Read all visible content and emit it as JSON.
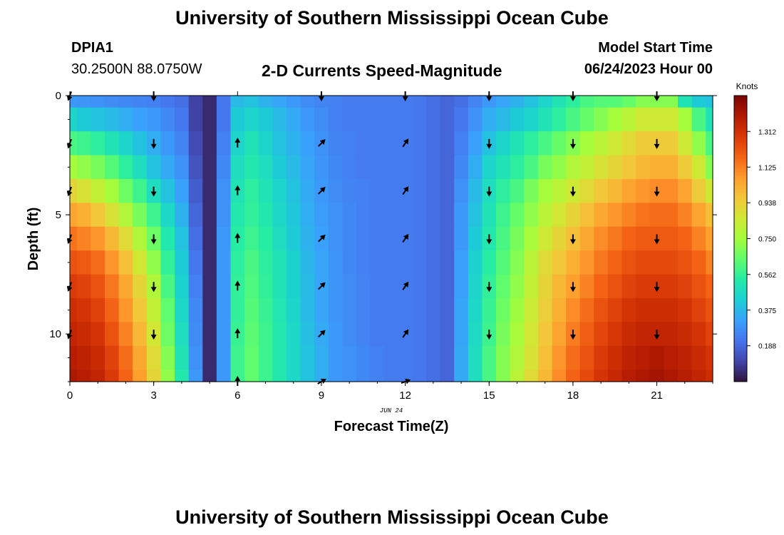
{
  "header": {
    "title": "University of Southern Mississippi Ocean Cube",
    "station_id": "DPIA1",
    "station_coords": "30.2500N  88.0750W",
    "subtitle": "2-D Currents Speed-Magnitude",
    "model_label": "Model Start Time",
    "model_time": "06/24/2023 Hour 00"
  },
  "footer": {
    "title": "University of Southern Mississippi Ocean Cube"
  },
  "colors": {
    "palette": [
      "#30123b",
      "#4145ab",
      "#4675ed",
      "#39a2fc",
      "#1bcfd4",
      "#24eca6",
      "#61fc6c",
      "#a4fc3b",
      "#d1e834",
      "#f3c63a",
      "#fe9b2d",
      "#f36315",
      "#d93806",
      "#b11901",
      "#7a0403"
    ]
  },
  "chart_data": {
    "type": "heatmap",
    "xlabel": "Forecast Time(Z)",
    "ylabel": "Depth (ft)",
    "date_label": "JUN 24",
    "colorbar_title": "Knots",
    "colorbar_ticks": [
      "1.312",
      "1.125",
      "0.938",
      "0.750",
      "0.562",
      "0.375",
      "0.188"
    ],
    "colorbar_tick_values": [
      1.312,
      1.125,
      0.938,
      0.75,
      0.562,
      0.375,
      0.188
    ],
    "value_range": [
      0,
      1.5
    ],
    "x_ticks": [
      "0",
      "3",
      "6",
      "9",
      "12",
      "15",
      "18",
      "21"
    ],
    "x_tick_values": [
      0,
      3,
      6,
      9,
      12,
      15,
      18,
      21
    ],
    "y_ticks": [
      "0",
      "5",
      "10"
    ],
    "y_tick_values": [
      0,
      5,
      10
    ],
    "xlim": [
      0,
      23
    ],
    "ylim": [
      12,
      0
    ],
    "hours": [
      0,
      0.5,
      1,
      1.5,
      2,
      2.5,
      3,
      3.5,
      4,
      4.5,
      5,
      5.5,
      6,
      6.5,
      7,
      7.5,
      8,
      8.5,
      9,
      9.5,
      10,
      10.5,
      11,
      11.5,
      12,
      12.5,
      13,
      13.5,
      14,
      14.5,
      15,
      15.5,
      16,
      16.5,
      17,
      17.5,
      18,
      18.5,
      19,
      19.5,
      20,
      20.5,
      21,
      21.5,
      22,
      22.5,
      23
    ],
    "depths": [
      0,
      1,
      2,
      3,
      4,
      5,
      6,
      7,
      8,
      9,
      10,
      11,
      12
    ],
    "speed_grid": [
      [
        0.3,
        0.29,
        0.28,
        0.27,
        0.26,
        0.25,
        0.24,
        0.22,
        0.2,
        0.1,
        0.05,
        0.22,
        0.38,
        0.4,
        0.36,
        0.33,
        0.3,
        0.27,
        0.25,
        0.24,
        0.23,
        0.23,
        0.23,
        0.23,
        0.23,
        0.22,
        0.2,
        0.18,
        0.2,
        0.25,
        0.3,
        0.33,
        0.36,
        0.4,
        0.45,
        0.5,
        0.55,
        0.6,
        0.62,
        0.62,
        0.65,
        0.7,
        0.7,
        0.7,
        0.5,
        0.42,
        0.4
      ],
      [
        0.45,
        0.42,
        0.4,
        0.38,
        0.35,
        0.32,
        0.3,
        0.26,
        0.22,
        0.1,
        0.05,
        0.22,
        0.42,
        0.45,
        0.42,
        0.38,
        0.34,
        0.3,
        0.27,
        0.24,
        0.23,
        0.23,
        0.23,
        0.23,
        0.23,
        0.22,
        0.2,
        0.18,
        0.22,
        0.28,
        0.35,
        0.38,
        0.42,
        0.45,
        0.5,
        0.55,
        0.6,
        0.65,
        0.7,
        0.75,
        0.8,
        0.85,
        0.85,
        0.85,
        0.75,
        0.6,
        0.5
      ],
      [
        0.6,
        0.58,
        0.55,
        0.5,
        0.45,
        0.4,
        0.35,
        0.3,
        0.25,
        0.12,
        0.05,
        0.24,
        0.45,
        0.5,
        0.45,
        0.4,
        0.36,
        0.32,
        0.28,
        0.25,
        0.24,
        0.23,
        0.23,
        0.23,
        0.23,
        0.22,
        0.2,
        0.18,
        0.24,
        0.32,
        0.4,
        0.45,
        0.5,
        0.55,
        0.6,
        0.65,
        0.7,
        0.75,
        0.8,
        0.85,
        0.9,
        0.95,
        0.95,
        0.95,
        0.85,
        0.72,
        0.6
      ],
      [
        0.75,
        0.72,
        0.68,
        0.62,
        0.55,
        0.48,
        0.4,
        0.34,
        0.28,
        0.14,
        0.05,
        0.26,
        0.48,
        0.52,
        0.48,
        0.42,
        0.38,
        0.33,
        0.29,
        0.26,
        0.24,
        0.23,
        0.23,
        0.23,
        0.23,
        0.22,
        0.2,
        0.18,
        0.26,
        0.35,
        0.45,
        0.5,
        0.55,
        0.6,
        0.68,
        0.72,
        0.78,
        0.82,
        0.88,
        0.92,
        0.96,
        1.0,
        1.02,
        1.02,
        0.95,
        0.85,
        0.7
      ],
      [
        0.92,
        0.88,
        0.82,
        0.75,
        0.66,
        0.58,
        0.48,
        0.4,
        0.32,
        0.16,
        0.05,
        0.28,
        0.5,
        0.55,
        0.5,
        0.45,
        0.4,
        0.34,
        0.3,
        0.27,
        0.25,
        0.24,
        0.23,
        0.23,
        0.23,
        0.22,
        0.2,
        0.18,
        0.28,
        0.38,
        0.48,
        0.55,
        0.6,
        0.68,
        0.75,
        0.8,
        0.85,
        0.9,
        0.96,
        1.0,
        1.05,
        1.08,
        1.1,
        1.1,
        1.05,
        0.95,
        0.85
      ],
      [
        1.05,
        1.02,
        0.96,
        0.88,
        0.78,
        0.68,
        0.58,
        0.46,
        0.36,
        0.18,
        0.05,
        0.28,
        0.52,
        0.56,
        0.52,
        0.46,
        0.41,
        0.35,
        0.31,
        0.28,
        0.26,
        0.24,
        0.23,
        0.23,
        0.23,
        0.22,
        0.2,
        0.18,
        0.3,
        0.4,
        0.5,
        0.58,
        0.65,
        0.72,
        0.8,
        0.86,
        0.92,
        0.98,
        1.04,
        1.08,
        1.12,
        1.15,
        1.16,
        1.16,
        1.12,
        1.05,
        0.98
      ],
      [
        1.15,
        1.12,
        1.08,
        1.0,
        0.9,
        0.78,
        0.66,
        0.52,
        0.4,
        0.2,
        0.05,
        0.3,
        0.54,
        0.58,
        0.54,
        0.48,
        0.42,
        0.36,
        0.32,
        0.28,
        0.26,
        0.24,
        0.23,
        0.23,
        0.23,
        0.22,
        0.2,
        0.18,
        0.3,
        0.42,
        0.52,
        0.6,
        0.68,
        0.76,
        0.85,
        0.92,
        0.98,
        1.04,
        1.1,
        1.14,
        1.18,
        1.2,
        1.2,
        1.2,
        1.18,
        1.12,
        1.06
      ],
      [
        1.22,
        1.2,
        1.16,
        1.08,
        0.98,
        0.86,
        0.72,
        0.56,
        0.42,
        0.22,
        0.05,
        0.3,
        0.55,
        0.6,
        0.55,
        0.5,
        0.44,
        0.37,
        0.33,
        0.29,
        0.26,
        0.24,
        0.23,
        0.23,
        0.23,
        0.22,
        0.2,
        0.18,
        0.32,
        0.44,
        0.54,
        0.62,
        0.7,
        0.8,
        0.9,
        0.96,
        1.02,
        1.08,
        1.14,
        1.18,
        1.22,
        1.24,
        1.24,
        1.24,
        1.22,
        1.18,
        1.12
      ],
      [
        1.28,
        1.26,
        1.22,
        1.14,
        1.04,
        0.92,
        0.78,
        0.6,
        0.44,
        0.24,
        0.05,
        0.3,
        0.56,
        0.61,
        0.56,
        0.5,
        0.44,
        0.38,
        0.33,
        0.29,
        0.27,
        0.25,
        0.23,
        0.23,
        0.23,
        0.22,
        0.2,
        0.18,
        0.32,
        0.45,
        0.56,
        0.64,
        0.72,
        0.82,
        0.92,
        1.0,
        1.06,
        1.12,
        1.18,
        1.22,
        1.26,
        1.28,
        1.28,
        1.28,
        1.26,
        1.22,
        1.18
      ],
      [
        1.32,
        1.3,
        1.26,
        1.18,
        1.08,
        0.96,
        0.82,
        0.64,
        0.46,
        0.26,
        0.05,
        0.3,
        0.56,
        0.62,
        0.57,
        0.51,
        0.45,
        0.38,
        0.33,
        0.29,
        0.27,
        0.25,
        0.23,
        0.23,
        0.23,
        0.22,
        0.2,
        0.18,
        0.33,
        0.46,
        0.57,
        0.66,
        0.74,
        0.84,
        0.94,
        1.02,
        1.1,
        1.16,
        1.22,
        1.26,
        1.3,
        1.32,
        1.32,
        1.32,
        1.3,
        1.26,
        1.22
      ],
      [
        1.35,
        1.33,
        1.3,
        1.22,
        1.12,
        1.0,
        0.86,
        0.66,
        0.48,
        0.27,
        0.05,
        0.3,
        0.57,
        0.63,
        0.58,
        0.52,
        0.46,
        0.39,
        0.34,
        0.3,
        0.27,
        0.25,
        0.23,
        0.23,
        0.23,
        0.22,
        0.2,
        0.18,
        0.33,
        0.47,
        0.58,
        0.68,
        0.76,
        0.86,
        0.96,
        1.05,
        1.13,
        1.19,
        1.25,
        1.29,
        1.33,
        1.35,
        1.35,
        1.35,
        1.33,
        1.3,
        1.26
      ],
      [
        1.38,
        1.36,
        1.33,
        1.26,
        1.16,
        1.04,
        0.9,
        0.7,
        0.5,
        0.28,
        0.05,
        0.3,
        0.58,
        0.64,
        0.58,
        0.52,
        0.46,
        0.4,
        0.35,
        0.3,
        0.28,
        0.26,
        0.24,
        0.23,
        0.23,
        0.22,
        0.2,
        0.18,
        0.34,
        0.48,
        0.6,
        0.7,
        0.78,
        0.88,
        0.98,
        1.08,
        1.16,
        1.22,
        1.28,
        1.32,
        1.36,
        1.38,
        1.4,
        1.38,
        1.36,
        1.33,
        1.3
      ],
      [
        1.4,
        1.38,
        1.35,
        1.28,
        1.18,
        1.06,
        0.92,
        0.72,
        0.52,
        0.3,
        0.05,
        0.3,
        0.58,
        0.64,
        0.58,
        0.52,
        0.46,
        0.4,
        0.35,
        0.3,
        0.28,
        0.26,
        0.24,
        0.23,
        0.23,
        0.22,
        0.2,
        0.18,
        0.34,
        0.48,
        0.6,
        0.7,
        0.8,
        0.9,
        1.0,
        1.1,
        1.18,
        1.24,
        1.3,
        1.34,
        1.38,
        1.4,
        1.42,
        1.4,
        1.38,
        1.35,
        1.32
      ]
    ],
    "arrow_hours": [
      0,
      3,
      6,
      9,
      12,
      15,
      18,
      21
    ],
    "arrow_depths": [
      0,
      2,
      4,
      6,
      8,
      10,
      12
    ],
    "arrow_directions_deg": [
      [
        200,
        180,
        null,
        180,
        180,
        180,
        180,
        180
      ],
      [
        200,
        180,
        0,
        45,
        35,
        180,
        180,
        180
      ],
      [
        200,
        180,
        0,
        45,
        35,
        180,
        180,
        180
      ],
      [
        200,
        180,
        0,
        45,
        35,
        180,
        180,
        180
      ],
      [
        200,
        180,
        0,
        45,
        35,
        180,
        180,
        180
      ],
      [
        200,
        180,
        0,
        45,
        35,
        180,
        180,
        180
      ],
      [
        null,
        null,
        0,
        60,
        70,
        null,
        null,
        null
      ]
    ]
  }
}
